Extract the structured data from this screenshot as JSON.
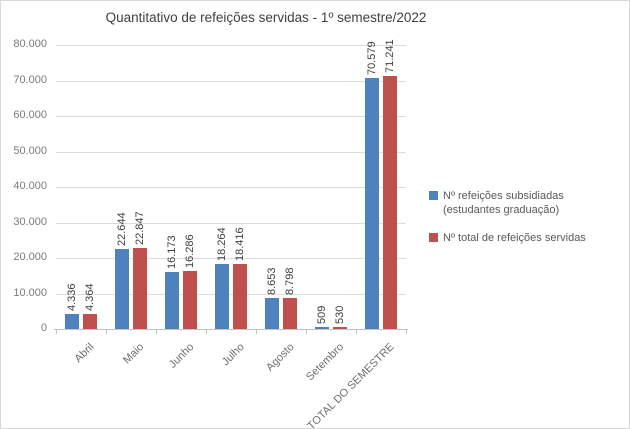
{
  "chart_data": {
    "type": "bar",
    "title": "Quantitativo de refeições servidas - 1º semestre/2022",
    "categories": [
      "Abril",
      "Maio",
      "Junho",
      "Julho",
      "Agosto",
      "Setembro",
      "TOTAL DO SEMESTRE"
    ],
    "series": [
      {
        "name": "Nº refeições subsidiadas (estudantes graduação)",
        "color": "#4f81bd",
        "values": [
          4336,
          22644,
          16173,
          18264,
          8653,
          509,
          70579
        ],
        "data_labels": [
          "4.336",
          "22.644",
          "16.173",
          "18.264",
          "8.653",
          "509",
          "70.579"
        ]
      },
      {
        "name": "Nº total de refeições servidas",
        "color": "#c0504d",
        "values": [
          4364,
          22847,
          16286,
          18416,
          8798,
          530,
          71241
        ],
        "data_labels": [
          "4.364",
          "22.847",
          "16.286",
          "18.416",
          "8.798",
          "530",
          "71.241"
        ]
      }
    ],
    "xlabel": "",
    "ylabel": "",
    "ylim": [
      0,
      80000
    ],
    "ytick_step": 10000,
    "ytick_labels": [
      "0",
      "10.000",
      "20.000",
      "30.000",
      "40.000",
      "50.000",
      "60.000",
      "70.000",
      "80.000"
    ],
    "grid": true,
    "legend_position": "right",
    "colors": {
      "gridline": "#dcdcdc",
      "axis": "#c3c3c3",
      "axis_text": "#7a7a7a",
      "title_text": "#404040",
      "data_label_text": "#404040",
      "legend_text": "#595959",
      "background": "#ffffff"
    }
  }
}
